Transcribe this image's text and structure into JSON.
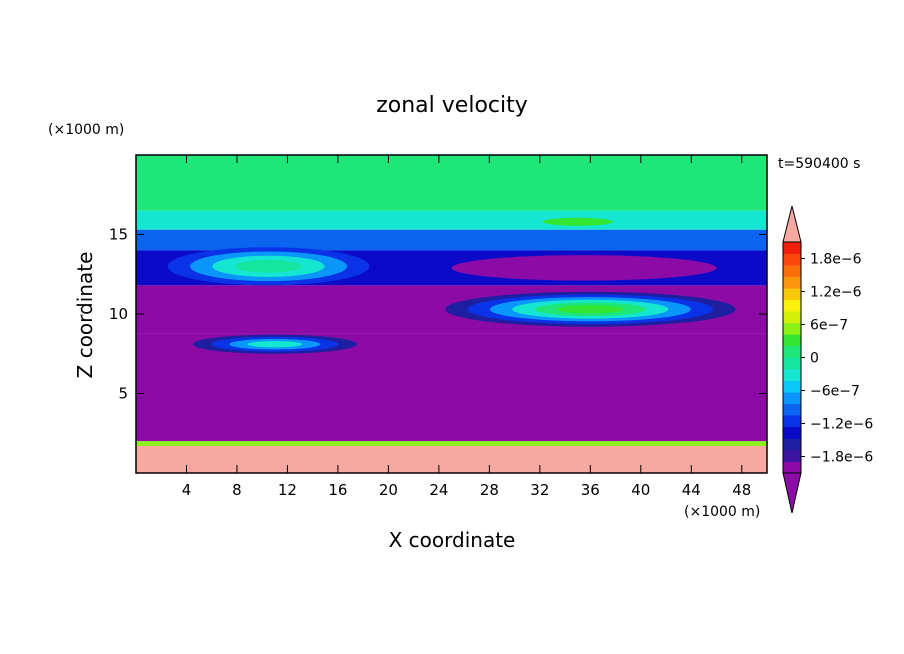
{
  "chart_data": {
    "type": "heatmap",
    "title": "zonal velocity",
    "xlabel": "X coordinate",
    "ylabel": "Z coordinate",
    "x_unit": "(×1000 m)",
    "y_unit": "(×1000 m)",
    "time_label": "t=590400 s",
    "xlim": [
      0,
      50
    ],
    "ylim": [
      0,
      20
    ],
    "xticks": [
      4,
      8,
      12,
      16,
      20,
      24,
      28,
      32,
      36,
      40,
      44,
      48
    ],
    "yticks": [
      5,
      10,
      15
    ],
    "colorbar": {
      "tick_labels": [
        "1.8e−6",
        "1.2e−6",
        "6e−7",
        "0",
        "−6e−7",
        "−1.2e−6",
        "−1.8e−6"
      ],
      "tick_values": [
        1.8e-06,
        1.2e-06,
        6e-07,
        0,
        -6e-07,
        -1.2e-06,
        -1.8e-06
      ],
      "vmin": -2.1e-06,
      "vmax": 2.1e-06,
      "colors": [
        "#8c0aa5",
        "#3c14a0",
        "#1e1ea0",
        "#0a0ac8",
        "#0a32e6",
        "#0a64f0",
        "#0a96fa",
        "#0ac8fa",
        "#14e6d2",
        "#14e6a0",
        "#1ee678",
        "#32e632",
        "#8cf014",
        "#d2f00a",
        "#faf00a",
        "#fac80a",
        "#fa960a",
        "#fa6e0a",
        "#fa460a",
        "#f01e0a"
      ],
      "over_color": "#f7a8a0",
      "under_color": "#8c0aa5"
    },
    "regions": [
      {
        "kind": "band",
        "z": [
          16.5,
          20
        ],
        "value": 1.5e-07
      },
      {
        "kind": "band",
        "z": [
          15.3,
          16.5
        ],
        "value": -3e-07
      },
      {
        "kind": "band",
        "z": [
          14,
          15.3
        ],
        "value": -1e-06
      },
      {
        "kind": "band",
        "z": [
          11.8,
          14
        ],
        "value": -1.3e-06
      },
      {
        "kind": "band",
        "z": [
          8.8,
          11.8
        ],
        "value": -2e-06
      },
      {
        "kind": "band",
        "z": [
          2,
          8.8
        ],
        "value": -2.05e-06
      },
      {
        "kind": "band",
        "z": [
          1.7,
          2
        ],
        "value": 5e-07
      },
      {
        "kind": "band",
        "z": [
          0,
          1.7
        ],
        "value": 2.3e-06
      },
      {
        "kind": "blob",
        "x": 10.5,
        "z": 13,
        "rx": 8,
        "rz": 1.2,
        "levels": [
          -1.2e-06,
          -8e-07,
          -4e-07,
          -1e-07
        ]
      },
      {
        "kind": "blob",
        "x": 11,
        "z": 8.1,
        "rx": 6.5,
        "rz": 0.6,
        "levels": [
          -1.5e-06,
          -1.1e-06,
          -7e-07,
          -4e-07
        ]
      },
      {
        "kind": "blob",
        "x": 36,
        "z": 10.3,
        "rx": 11.5,
        "rz": 1.1,
        "levels": [
          -1.5e-06,
          -1.1e-06,
          -7e-07,
          -3e-07,
          1e-07,
          4e-07
        ]
      },
      {
        "kind": "blob",
        "x": 35.5,
        "z": 12.9,
        "rx": 10.5,
        "rz": 0.8,
        "levels": [
          -2e-06
        ]
      },
      {
        "kind": "blob",
        "x": 35,
        "z": 15.8,
        "rx": 2.8,
        "rz": 0.25,
        "levels": [
          3e-07
        ]
      }
    ]
  }
}
